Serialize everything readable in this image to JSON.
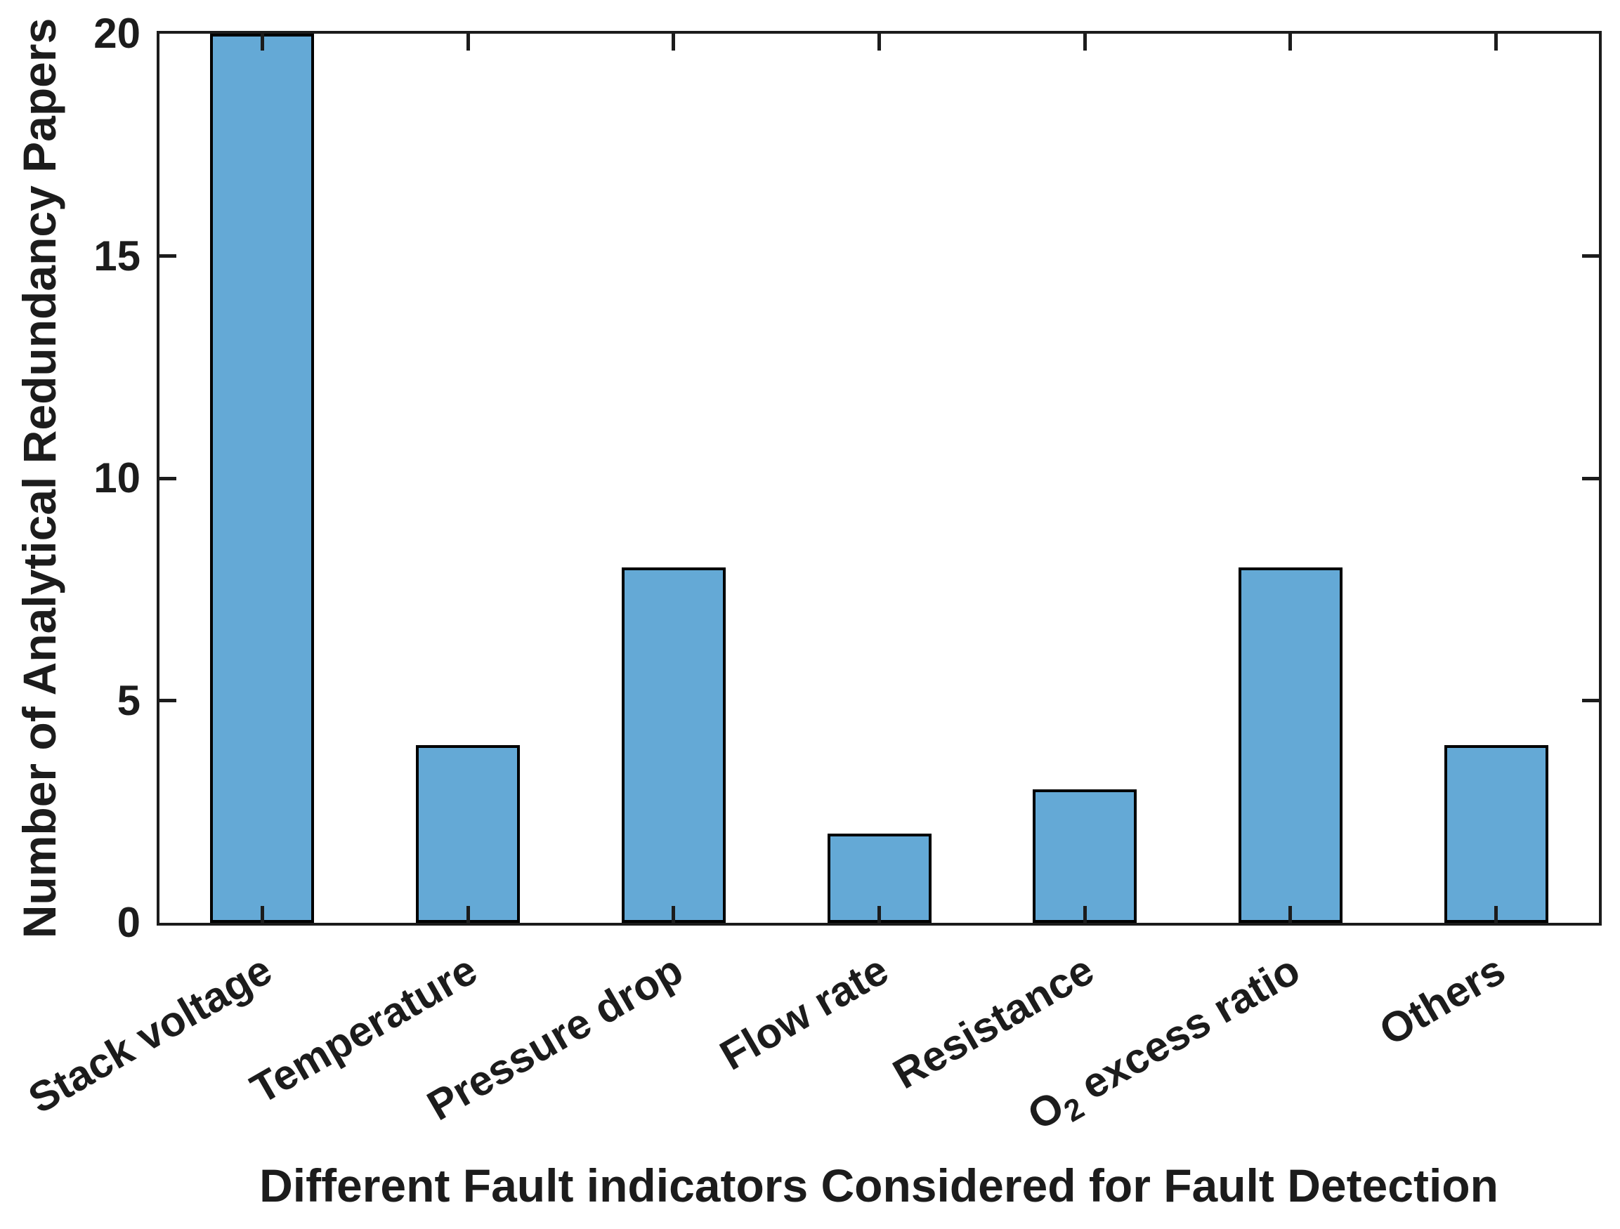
{
  "figure": {
    "background_color": "#ffffff",
    "text_color": "#1c1c1c"
  },
  "chart_data": {
    "type": "bar",
    "title": "",
    "categories": [
      "Stack voltage",
      "Temperature",
      "Pressure drop",
      "Flow rate",
      "Resistance",
      "O₂ excess ratio",
      "Others"
    ],
    "values": [
      20,
      4,
      8,
      2,
      3,
      8,
      4
    ],
    "xlabel": "Different Fault indicators Considered for Fault Detection",
    "ylabel": "Number of Analytical Redundancy Papers",
    "ylim": [
      0,
      20
    ],
    "yticks": [
      0,
      5,
      10,
      15,
      20
    ],
    "ytick_labels": [
      "0",
      "5",
      "10",
      "15",
      "20"
    ],
    "xtick_angle_deg": 30,
    "grid": false,
    "legend": null,
    "bar_color": "#64A9D6",
    "bar_edge_color": "#000000",
    "axis_color": "#1c1c1c",
    "box_on": true,
    "tick_direction": "in"
  }
}
